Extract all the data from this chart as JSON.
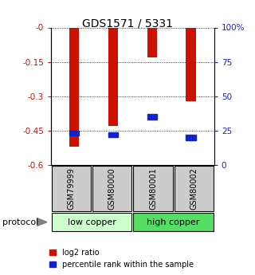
{
  "title": "GDS1571 / 5331",
  "samples": [
    "GSM79999",
    "GSM80000",
    "GSM80001",
    "GSM80002"
  ],
  "log2_ratio": [
    -0.52,
    -0.43,
    -0.13,
    -0.32
  ],
  "percentile_rank": [
    23,
    22,
    35,
    20
  ],
  "groups": [
    {
      "label": "low copper",
      "color_light": "#ccffcc",
      "color_dark": "#aaddaa"
    },
    {
      "label": "high copper",
      "color_light": "#55dd66",
      "color_dark": "#33bb44"
    }
  ],
  "ylim_left": [
    -0.6,
    0.0
  ],
  "ylim_right": [
    0,
    100
  ],
  "yticks_left": [
    0.0,
    -0.15,
    -0.3,
    -0.45,
    -0.6
  ],
  "yticks_right": [
    100,
    75,
    50,
    25,
    0
  ],
  "bar_color": "#cc1100",
  "percentile_color": "#1122cc",
  "bg_color": "#ffffff",
  "left_axis_color": "#cc1100",
  "right_axis_color": "#1122cc",
  "sample_box_color": "#cccccc",
  "legend_red_label": "log2 ratio",
  "legend_blue_label": "percentile rank within the sample",
  "protocol_label": "protocol",
  "bar_width": 0.25
}
